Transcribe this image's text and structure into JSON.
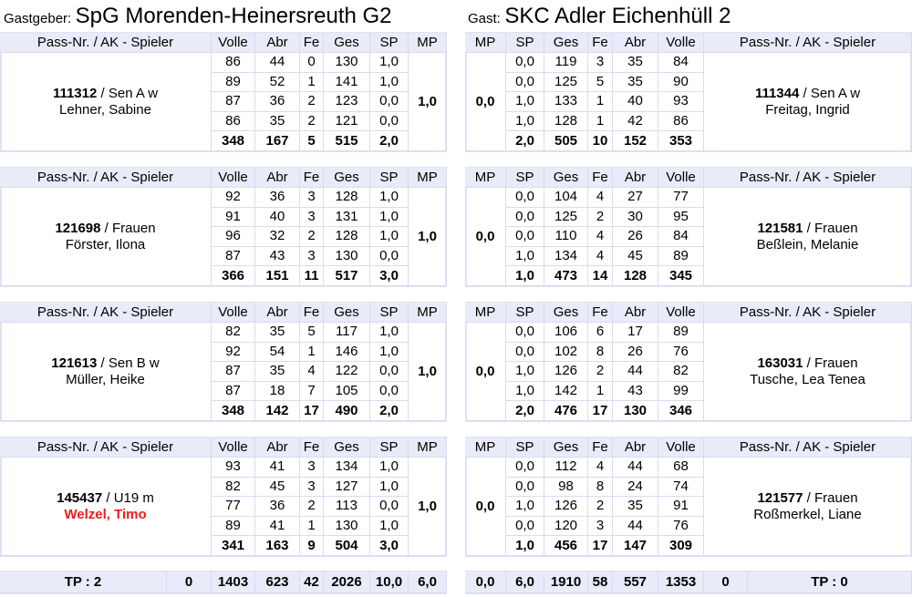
{
  "host": {
    "label": "Gastgeber:",
    "name": "SpG Morenden-Heinersreuth G2"
  },
  "guest": {
    "label": "Gast:",
    "name": "SKC Adler Eichenhüll 2"
  },
  "columns": {
    "left": [
      "Pass-Nr. / AK - Spieler",
      "Volle",
      "Abr",
      "Fe",
      "Ges",
      "SP",
      "MP"
    ],
    "right": [
      "MP",
      "SP",
      "Ges",
      "Fe",
      "Abr",
      "Volle",
      "Pass-Nr. / AK - Spieler"
    ]
  },
  "matches": [
    {
      "home": {
        "pass": "111312",
        "class": "/ Sen A w",
        "name": "Lehner, Sabine",
        "mp": "1,0",
        "rows": [
          [
            "86",
            "44",
            "0",
            "130",
            "1,0"
          ],
          [
            "89",
            "52",
            "1",
            "141",
            "1,0"
          ],
          [
            "87",
            "36",
            "2",
            "123",
            "0,0"
          ],
          [
            "86",
            "35",
            "2",
            "121",
            "0,0"
          ],
          [
            "348",
            "167",
            "5",
            "515",
            "2,0"
          ]
        ]
      },
      "guest": {
        "pass": "111344",
        "class": "/ Sen A w",
        "name": "Freitag, Ingrid",
        "mp": "0,0",
        "rows": [
          [
            "0,0",
            "119",
            "3",
            "35",
            "84"
          ],
          [
            "0,0",
            "125",
            "5",
            "35",
            "90"
          ],
          [
            "1,0",
            "133",
            "1",
            "40",
            "93"
          ],
          [
            "1,0",
            "128",
            "1",
            "42",
            "86"
          ],
          [
            "2,0",
            "505",
            "10",
            "152",
            "353"
          ]
        ]
      }
    },
    {
      "home": {
        "pass": "121698",
        "class": "/ Frauen",
        "name": "Förster, Ilona",
        "mp": "1,0",
        "rows": [
          [
            "92",
            "36",
            "3",
            "128",
            "1,0"
          ],
          [
            "91",
            "40",
            "3",
            "131",
            "1,0"
          ],
          [
            "96",
            "32",
            "2",
            "128",
            "1,0"
          ],
          [
            "87",
            "43",
            "3",
            "130",
            "0,0"
          ],
          [
            "366",
            "151",
            "11",
            "517",
            "3,0"
          ]
        ]
      },
      "guest": {
        "pass": "121581",
        "class": "/ Frauen",
        "name": "Beßlein, Melanie",
        "mp": "0,0",
        "rows": [
          [
            "0,0",
            "104",
            "4",
            "27",
            "77"
          ],
          [
            "0,0",
            "125",
            "2",
            "30",
            "95"
          ],
          [
            "0,0",
            "110",
            "4",
            "26",
            "84"
          ],
          [
            "1,0",
            "134",
            "4",
            "45",
            "89"
          ],
          [
            "1,0",
            "473",
            "14",
            "128",
            "345"
          ]
        ]
      }
    },
    {
      "home": {
        "pass": "121613",
        "class": "/ Sen B w",
        "name": "Müller, Heike",
        "mp": "1,0",
        "rows": [
          [
            "82",
            "35",
            "5",
            "117",
            "1,0"
          ],
          [
            "92",
            "54",
            "1",
            "146",
            "1,0"
          ],
          [
            "87",
            "35",
            "4",
            "122",
            "0,0"
          ],
          [
            "87",
            "18",
            "7",
            "105",
            "0,0"
          ],
          [
            "348",
            "142",
            "17",
            "490",
            "2,0"
          ]
        ]
      },
      "guest": {
        "pass": "163031",
        "class": "/ Frauen",
        "name": "Tusche, Lea Tenea",
        "mp": "0,0",
        "rows": [
          [
            "0,0",
            "106",
            "6",
            "17",
            "89"
          ],
          [
            "0,0",
            "102",
            "8",
            "26",
            "76"
          ],
          [
            "1,0",
            "126",
            "2",
            "44",
            "82"
          ],
          [
            "1,0",
            "142",
            "1",
            "43",
            "99"
          ],
          [
            "2,0",
            "476",
            "17",
            "130",
            "346"
          ]
        ]
      }
    },
    {
      "home": {
        "pass": "145437",
        "class": "/ U19 m",
        "name": "Welzel, Timo",
        "name_color": "#ee1c1c",
        "mp": "1,0",
        "rows": [
          [
            "93",
            "41",
            "3",
            "134",
            "1,0"
          ],
          [
            "82",
            "45",
            "3",
            "127",
            "1,0"
          ],
          [
            "77",
            "36",
            "2",
            "113",
            "0,0"
          ],
          [
            "89",
            "41",
            "1",
            "130",
            "1,0"
          ],
          [
            "341",
            "163",
            "9",
            "504",
            "3,0"
          ]
        ]
      },
      "guest": {
        "pass": "121577",
        "class": "/ Frauen",
        "name": "Roßmerkel, Liane",
        "mp": "0,0",
        "rows": [
          [
            "0,0",
            "112",
            "4",
            "44",
            "68"
          ],
          [
            "0,0",
            "98",
            "8",
            "24",
            "74"
          ],
          [
            "1,0",
            "126",
            "2",
            "35",
            "91"
          ],
          [
            "0,0",
            "120",
            "3",
            "44",
            "76"
          ],
          [
            "1,0",
            "456",
            "17",
            "147",
            "309"
          ]
        ]
      }
    }
  ],
  "totals": {
    "home": [
      "TP : 2",
      "0",
      "1403",
      "623",
      "42",
      "2026",
      "10,0",
      "6,0"
    ],
    "guest": [
      "0,0",
      "6,0",
      "1910",
      "58",
      "557",
      "1353",
      "0",
      "TP : 0"
    ]
  }
}
